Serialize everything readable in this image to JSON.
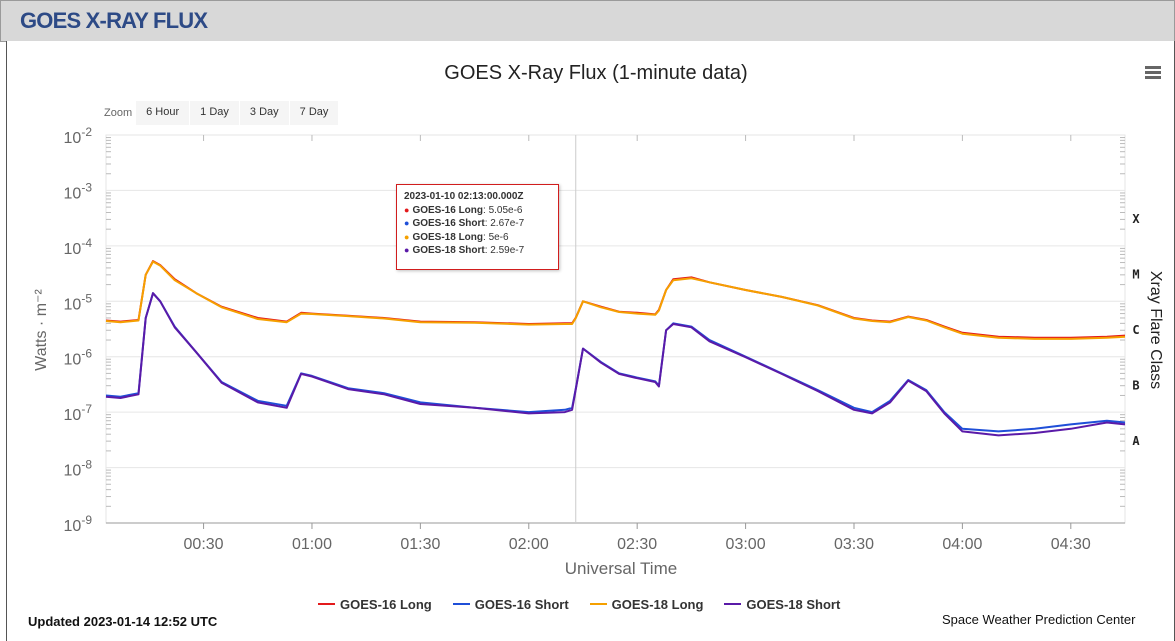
{
  "header": {
    "title": "GOES X-RAY FLUX"
  },
  "menu_icon": "hamburger-icon",
  "zoom": {
    "label": "Zoom",
    "buttons": [
      "6 Hour",
      "1 Day",
      "3 Day",
      "7 Day"
    ]
  },
  "tooltip": {
    "time": "2023-01-10 02:13:00.000Z",
    "rows": [
      {
        "name": "GOES-16 Long",
        "value": "5.05e-6",
        "color": "#e31a1c"
      },
      {
        "name": "GOES-16 Short",
        "value": "2.67e-7",
        "color": "#1f4fd8"
      },
      {
        "name": "GOES-18 Long",
        "value": "5e-6",
        "color": "#f5a000"
      },
      {
        "name": "GOES-18 Short",
        "value": "2.59e-7",
        "color": "#5a1aa8"
      }
    ]
  },
  "footer": {
    "updated": "Updated 2023-01-14 12:52 UTC",
    "credit": "Space Weather Prediction Center"
  },
  "chart_data": {
    "type": "line",
    "title": "GOES X-Ray Flux (1-minute data)",
    "xlabel": "Universal Time",
    "ylabel": "Watts · m⁻²",
    "ylabel_right": "Xray Flare Class",
    "y_scale": "log",
    "ylim": [
      1e-09,
      0.01
    ],
    "x_range": [
      "00:03",
      "04:45"
    ],
    "x_ticks": [
      "00:30",
      "01:00",
      "01:30",
      "02:00",
      "02:30",
      "03:00",
      "03:30",
      "04:00",
      "04:30"
    ],
    "y_ticks": [
      {
        "base": "10",
        "exp": "-2"
      },
      {
        "base": "10",
        "exp": "-3"
      },
      {
        "base": "10",
        "exp": "-4"
      },
      {
        "base": "10",
        "exp": "-5"
      },
      {
        "base": "10",
        "exp": "-6"
      },
      {
        "base": "10",
        "exp": "-7"
      },
      {
        "base": "10",
        "exp": "-8"
      },
      {
        "base": "10",
        "exp": "-9"
      }
    ],
    "flare_classes": [
      {
        "label": "X",
        "value": 0.0001
      },
      {
        "label": "M",
        "value": 1e-05
      },
      {
        "label": "C",
        "value": 1e-06
      },
      {
        "label": "B",
        "value": 1e-07
      },
      {
        "label": "A",
        "value": 1e-08
      }
    ],
    "crosshair_time": "02:13",
    "grid": true,
    "legend_position": "bottom",
    "series": [
      {
        "name": "GOES-16 Long",
        "color": "#e31a1c",
        "x": [
          "00:03",
          "00:07",
          "00:12",
          "00:14",
          "00:16",
          "00:18",
          "00:22",
          "00:28",
          "00:35",
          "00:45",
          "00:53",
          "00:57",
          "01:00",
          "01:10",
          "01:20",
          "01:30",
          "01:45",
          "02:00",
          "02:10",
          "02:12",
          "02:13",
          "02:15",
          "02:20",
          "02:25",
          "02:30",
          "02:35",
          "02:36",
          "02:38",
          "02:40",
          "02:45",
          "02:50",
          "03:00",
          "03:10",
          "03:20",
          "03:30",
          "03:35",
          "03:40",
          "03:45",
          "03:50",
          "03:55",
          "04:00",
          "04:10",
          "04:20",
          "04:30",
          "04:40",
          "04:45"
        ],
        "y": [
          4.5e-06,
          4.3e-06,
          4.6e-06,
          3e-05,
          5.3e-05,
          4.5e-05,
          2.5e-05,
          1.4e-05,
          8e-06,
          5e-06,
          4.3e-06,
          6.2e-06,
          6e-06,
          5.5e-06,
          5e-06,
          4.3e-06,
          4.2e-06,
          3.9e-06,
          4e-06,
          4e-06,
          5.05e-06,
          1e-05,
          8e-06,
          6.5e-06,
          6.2e-06,
          5.8e-06,
          7e-06,
          1.6e-05,
          2.5e-05,
          2.7e-05,
          2.2e-05,
          1.6e-05,
          1.2e-05,
          8.5e-06,
          5e-06,
          4.5e-06,
          4.3e-06,
          5.3e-06,
          4.6e-06,
          3.5e-06,
          2.7e-06,
          2.3e-06,
          2.2e-06,
          2.2e-06,
          2.3e-06,
          2.4e-06
        ]
      },
      {
        "name": "GOES-16 Short",
        "color": "#1f4fd8",
        "x": [
          "00:03",
          "00:07",
          "00:12",
          "00:14",
          "00:16",
          "00:18",
          "00:22",
          "00:28",
          "00:35",
          "00:45",
          "00:53",
          "00:57",
          "01:00",
          "01:10",
          "01:20",
          "01:30",
          "01:45",
          "02:00",
          "02:10",
          "02:12",
          "02:13",
          "02:15",
          "02:20",
          "02:25",
          "02:30",
          "02:35",
          "02:36",
          "02:38",
          "02:40",
          "02:45",
          "02:50",
          "03:00",
          "03:10",
          "03:20",
          "03:30",
          "03:35",
          "03:40",
          "03:45",
          "03:50",
          "03:55",
          "04:00",
          "04:10",
          "04:20",
          "04:30",
          "04:40",
          "04:45"
        ],
        "y": [
          2e-07,
          1.9e-07,
          2.2e-07,
          5e-06,
          1.4e-05,
          1e-05,
          3.5e-06,
          1.2e-06,
          3.5e-07,
          1.6e-07,
          1.3e-07,
          5e-07,
          4.5e-07,
          2.7e-07,
          2.2e-07,
          1.5e-07,
          1.2e-07,
          1e-07,
          1.1e-07,
          1.2e-07,
          2.67e-07,
          1.4e-06,
          8e-07,
          5e-07,
          4.2e-07,
          3.6e-07,
          3e-07,
          3e-06,
          4e-06,
          3.5e-06,
          2e-06,
          1e-06,
          5e-07,
          2.5e-07,
          1.2e-07,
          1e-07,
          1.6e-07,
          3.8e-07,
          2.5e-07,
          1e-07,
          5e-08,
          4.5e-08,
          5e-08,
          6e-08,
          7e-08,
          6.5e-08
        ]
      },
      {
        "name": "GOES-18 Long",
        "color": "#f5a000",
        "x": [
          "00:03",
          "00:07",
          "00:12",
          "00:14",
          "00:16",
          "00:18",
          "00:22",
          "00:28",
          "00:35",
          "00:45",
          "00:53",
          "00:57",
          "01:00",
          "01:10",
          "01:20",
          "01:30",
          "01:45",
          "02:00",
          "02:10",
          "02:12",
          "02:13",
          "02:15",
          "02:20",
          "02:25",
          "02:30",
          "02:35",
          "02:36",
          "02:38",
          "02:40",
          "02:45",
          "02:50",
          "03:00",
          "03:10",
          "03:20",
          "03:30",
          "03:35",
          "03:40",
          "03:45",
          "03:50",
          "03:55",
          "04:00",
          "04:10",
          "04:20",
          "04:30",
          "04:40",
          "04:45"
        ],
        "y": [
          4.4e-06,
          4.2e-06,
          4.5e-06,
          3e-05,
          5.2e-05,
          4.4e-05,
          2.4e-05,
          1.4e-05,
          7.8e-06,
          4.8e-06,
          4.2e-06,
          6e-06,
          5.9e-06,
          5.4e-06,
          4.9e-06,
          4.2e-06,
          4.1e-06,
          3.8e-06,
          3.9e-06,
          3.9e-06,
          5e-06,
          1e-05,
          7.8e-06,
          6.4e-06,
          6e-06,
          5.7e-06,
          6.8e-06,
          1.6e-05,
          2.4e-05,
          2.6e-05,
          2.2e-05,
          1.6e-05,
          1.2e-05,
          8.4e-06,
          4.9e-06,
          4.4e-06,
          4.2e-06,
          5.2e-06,
          4.5e-06,
          3.4e-06,
          2.6e-06,
          2.2e-06,
          2.1e-06,
          2.1e-06,
          2.2e-06,
          2.3e-06
        ]
      },
      {
        "name": "GOES-18 Short",
        "color": "#5a1aa8",
        "x": [
          "00:03",
          "00:07",
          "00:12",
          "00:14",
          "00:16",
          "00:18",
          "00:22",
          "00:28",
          "00:35",
          "00:45",
          "00:53",
          "00:57",
          "01:00",
          "01:10",
          "01:20",
          "01:30",
          "01:45",
          "02:00",
          "02:10",
          "02:12",
          "02:13",
          "02:15",
          "02:20",
          "02:25",
          "02:30",
          "02:35",
          "02:36",
          "02:38",
          "02:40",
          "02:45",
          "02:50",
          "03:00",
          "03:10",
          "03:20",
          "03:30",
          "03:35",
          "03:40",
          "03:45",
          "03:50",
          "03:55",
          "04:00",
          "04:10",
          "04:20",
          "04:30",
          "04:40",
          "04:45"
        ],
        "y": [
          1.9e-07,
          1.8e-07,
          2.1e-07,
          5e-06,
          1.4e-05,
          1e-05,
          3.4e-06,
          1.2e-06,
          3.4e-07,
          1.5e-07,
          1.2e-07,
          4.9e-07,
          4.4e-07,
          2.6e-07,
          2.1e-07,
          1.4e-07,
          1.2e-07,
          9.5e-08,
          1e-07,
          1.1e-07,
          2.59e-07,
          1.4e-06,
          7.8e-07,
          4.9e-07,
          4.1e-07,
          3.5e-07,
          2.9e-07,
          3e-06,
          3.9e-06,
          3.4e-06,
          1.9e-06,
          9.8e-07,
          4.9e-07,
          2.4e-07,
          1.1e-07,
          9.5e-08,
          1.5e-07,
          3.7e-07,
          2.4e-07,
          9.5e-08,
          4.5e-08,
          3.8e-08,
          4.2e-08,
          5e-08,
          6.5e-08,
          6e-08
        ]
      }
    ]
  }
}
